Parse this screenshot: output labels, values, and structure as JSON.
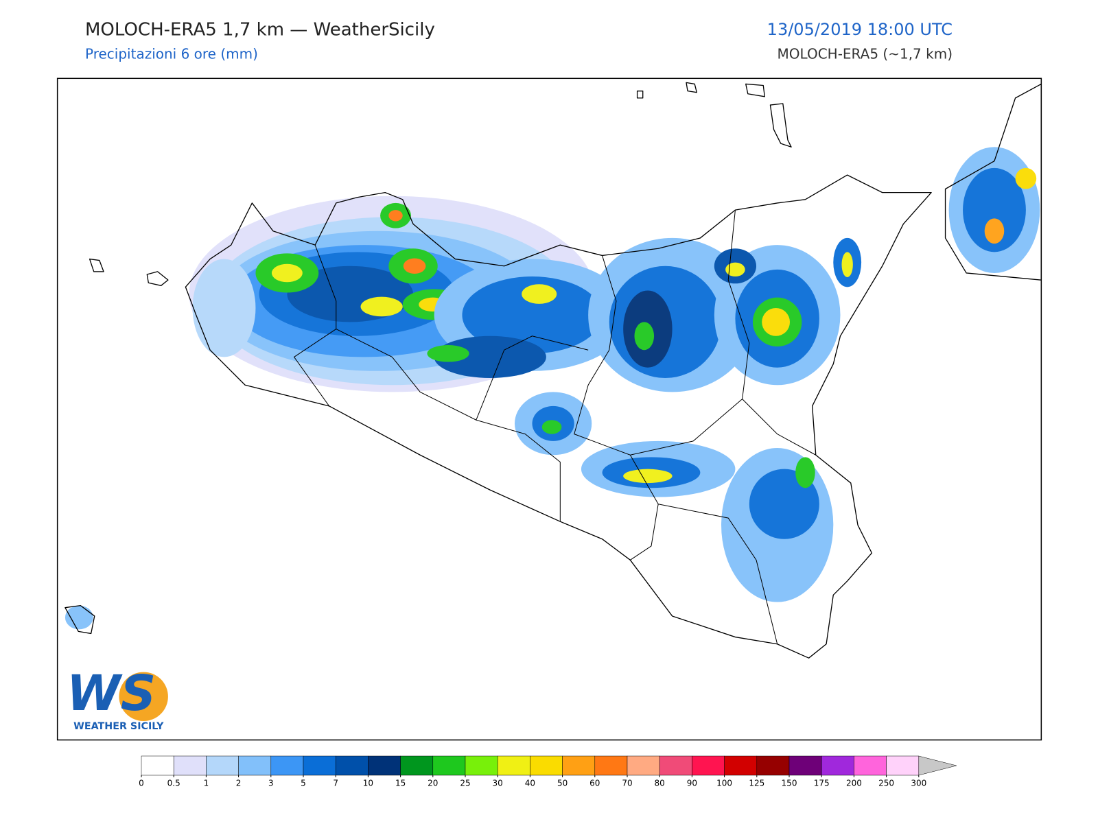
{
  "header": {
    "title": "MOLOCH-ERA5 1,7 km — WeatherSicily",
    "subtitle": "Precipitazioni 6 ore (mm)",
    "valid_time": "13/05/2019 18:00 UTC",
    "model": "MOLOCH-ERA5 (~1,7 km)"
  },
  "logo": {
    "letters": "WS",
    "text": "WEATHER SICILY"
  },
  "colorbar": {
    "ticks": [
      0,
      0.5,
      1,
      2,
      3,
      5,
      7,
      10,
      15,
      20,
      25,
      30,
      40,
      50,
      60,
      70,
      80,
      90,
      100,
      125,
      150,
      175,
      200,
      250,
      300
    ],
    "colors": [
      "#ffffff",
      "#e0e0fa",
      "#b4d7fa",
      "#82c0fa",
      "#3c96f5",
      "#0a6ed7",
      "#0050aa",
      "#003278",
      "#00961e",
      "#1ec81e",
      "#78f00a",
      "#f0f014",
      "#fadc00",
      "#ffa014",
      "#ff7814",
      "#ffaa82",
      "#f04b78",
      "#ff1450",
      "#d20000",
      "#960000",
      "#6e0078",
      "#a028dc",
      "#ff64dc",
      "#ffd2fa"
    ],
    "extend_color": "#c8c8c8"
  }
}
